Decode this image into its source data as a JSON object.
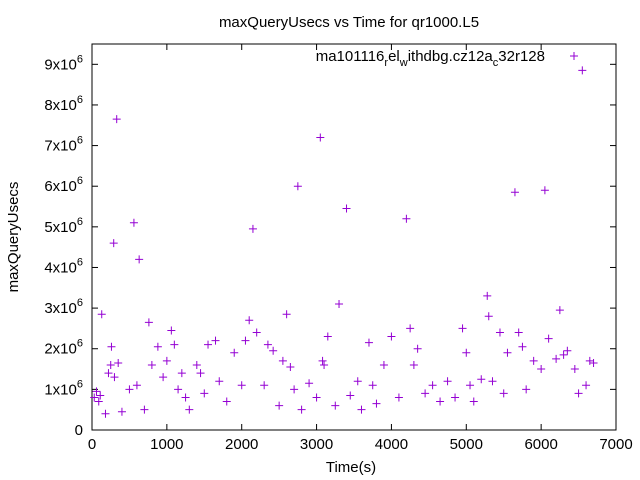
{
  "chart_data": {
    "type": "scatter",
    "title": "maxQueryUsecs vs Time for qr1000.L5",
    "xlabel": "Time(s)",
    "ylabel": "maxQueryUsecs",
    "xlim": [
      0,
      7000
    ],
    "ylim": [
      0,
      9500000
    ],
    "x_ticks": [
      0,
      1000,
      2000,
      3000,
      4000,
      5000,
      6000,
      7000
    ],
    "x_tick_labels": [
      "0",
      "1000",
      "2000",
      "3000",
      "4000",
      "5000",
      "6000",
      "7000"
    ],
    "y_ticks": [
      {
        "value": 0,
        "mantissa": "0",
        "exponent": ""
      },
      {
        "value": 1000000,
        "mantissa": "1x10",
        "exponent": "6"
      },
      {
        "value": 2000000,
        "mantissa": "2x10",
        "exponent": "6"
      },
      {
        "value": 3000000,
        "mantissa": "3x10",
        "exponent": "6"
      },
      {
        "value": 4000000,
        "mantissa": "4x10",
        "exponent": "6"
      },
      {
        "value": 5000000,
        "mantissa": "5x10",
        "exponent": "6"
      },
      {
        "value": 6000000,
        "mantissa": "6x10",
        "exponent": "6"
      },
      {
        "value": 7000000,
        "mantissa": "7x10",
        "exponent": "6"
      },
      {
        "value": 8000000,
        "mantissa": "8x10",
        "exponent": "6"
      },
      {
        "value": 9000000,
        "mantissa": "9x10",
        "exponent": "6"
      }
    ],
    "legend_position": "top-right",
    "grid": false,
    "series": [
      {
        "name_parts": [
          {
            "text": "ma101116",
            "sub": false
          },
          {
            "text": "r",
            "sub": true
          },
          {
            "text": "el",
            "sub": false
          },
          {
            "text": "w",
            "sub": true
          },
          {
            "text": "ithdbg.cz12a",
            "sub": false
          },
          {
            "text": "c",
            "sub": true
          },
          {
            "text": "32r128",
            "sub": false
          }
        ],
        "color": "#9400d3",
        "marker": "plus",
        "points": [
          [
            30,
            800000
          ],
          [
            60,
            950000
          ],
          [
            90,
            700000
          ],
          [
            110,
            850000
          ],
          [
            130,
            2850000
          ],
          [
            180,
            400000
          ],
          [
            220,
            1400000
          ],
          [
            250,
            1600000
          ],
          [
            260,
            2050000
          ],
          [
            290,
            4600000
          ],
          [
            300,
            1300000
          ],
          [
            330,
            7650000
          ],
          [
            350,
            1650000
          ],
          [
            400,
            450000
          ],
          [
            500,
            1000000
          ],
          [
            560,
            5100000
          ],
          [
            600,
            1100000
          ],
          [
            630,
            4200000
          ],
          [
            700,
            500000
          ],
          [
            760,
            2650000
          ],
          [
            800,
            1600000
          ],
          [
            880,
            2050000
          ],
          [
            950,
            1300000
          ],
          [
            1000,
            1700000
          ],
          [
            1060,
            2450000
          ],
          [
            1100,
            2100000
          ],
          [
            1150,
            1000000
          ],
          [
            1200,
            1400000
          ],
          [
            1250,
            800000
          ],
          [
            1300,
            500000
          ],
          [
            1400,
            1600000
          ],
          [
            1450,
            1400000
          ],
          [
            1500,
            900000
          ],
          [
            1550,
            2100000
          ],
          [
            1650,
            2200000
          ],
          [
            1700,
            1200000
          ],
          [
            1800,
            700000
          ],
          [
            1900,
            1900000
          ],
          [
            2000,
            1100000
          ],
          [
            2050,
            2200000
          ],
          [
            2100,
            2700000
          ],
          [
            2150,
            4950000
          ],
          [
            2200,
            2400000
          ],
          [
            2300,
            1100000
          ],
          [
            2350,
            2100000
          ],
          [
            2420,
            1950000
          ],
          [
            2500,
            600000
          ],
          [
            2550,
            1700000
          ],
          [
            2600,
            2850000
          ],
          [
            2650,
            1550000
          ],
          [
            2700,
            1000000
          ],
          [
            2750,
            6000000
          ],
          [
            2800,
            500000
          ],
          [
            2900,
            1150000
          ],
          [
            3000,
            800000
          ],
          [
            3050,
            7200000
          ],
          [
            3080,
            1700000
          ],
          [
            3100,
            1600000
          ],
          [
            3150,
            2300000
          ],
          [
            3250,
            600000
          ],
          [
            3300,
            3100000
          ],
          [
            3400,
            5450000
          ],
          [
            3450,
            850000
          ],
          [
            3550,
            1200000
          ],
          [
            3600,
            500000
          ],
          [
            3700,
            2150000
          ],
          [
            3750,
            1100000
          ],
          [
            3800,
            650000
          ],
          [
            3900,
            1600000
          ],
          [
            4000,
            2300000
          ],
          [
            4100,
            800000
          ],
          [
            4200,
            5200000
          ],
          [
            4250,
            2500000
          ],
          [
            4300,
            1600000
          ],
          [
            4350,
            2000000
          ],
          [
            4450,
            900000
          ],
          [
            4550,
            1100000
          ],
          [
            4650,
            700000
          ],
          [
            4750,
            1200000
          ],
          [
            4850,
            800000
          ],
          [
            4950,
            2500000
          ],
          [
            5000,
            1900000
          ],
          [
            5050,
            1100000
          ],
          [
            5100,
            700000
          ],
          [
            5200,
            1250000
          ],
          [
            5280,
            3300000
          ],
          [
            5300,
            2800000
          ],
          [
            5350,
            1200000
          ],
          [
            5450,
            2400000
          ],
          [
            5500,
            900000
          ],
          [
            5550,
            1900000
          ],
          [
            5650,
            5850000
          ],
          [
            5700,
            2400000
          ],
          [
            5750,
            2050000
          ],
          [
            5800,
            1000000
          ],
          [
            5900,
            1700000
          ],
          [
            6000,
            1500000
          ],
          [
            6050,
            5900000
          ],
          [
            6100,
            2250000
          ],
          [
            6200,
            1750000
          ],
          [
            6250,
            2950000
          ],
          [
            6300,
            1850000
          ],
          [
            6350,
            1950000
          ],
          [
            6450,
            1500000
          ],
          [
            6500,
            900000
          ],
          [
            6550,
            8850000
          ],
          [
            6600,
            1100000
          ],
          [
            6650,
            1700000
          ],
          [
            6700,
            1650000
          ]
        ]
      }
    ]
  }
}
